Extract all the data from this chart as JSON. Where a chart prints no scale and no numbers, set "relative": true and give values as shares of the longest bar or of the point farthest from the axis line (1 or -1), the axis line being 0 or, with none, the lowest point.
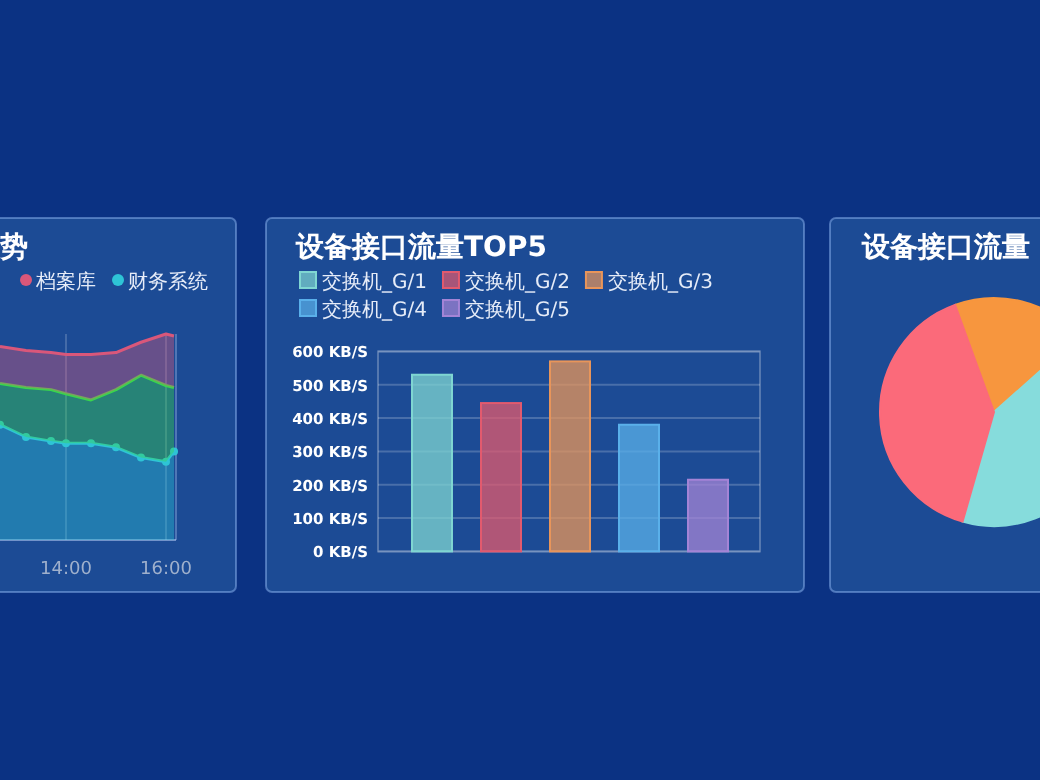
{
  "chart_data": [
    {
      "type": "area",
      "title": "势",
      "stacked": true,
      "relative": true,
      "x": [
        12.68,
        13.2,
        13.7,
        14.0,
        14.5,
        15.0,
        15.5,
        16.0,
        16.16
      ],
      "xlim": [
        12.5,
        16.2
      ],
      "xticks": [
        {
          "value": 14,
          "label": "14:00"
        },
        {
          "value": 16,
          "label": "16:00"
        }
      ],
      "tick_labels": "x",
      "grid": "x",
      "legend": "top",
      "series": [
        {
          "name": "财务系统",
          "color": "#2ec4d6",
          "marker": "circle",
          "values": [
            0.56,
            0.5,
            0.48,
            0.47,
            0.47,
            0.45,
            0.4,
            0.38,
            0.43
          ]
        },
        {
          "color": "#3ad64c",
          "values": [
            0.2,
            0.24,
            0.25,
            0.24,
            0.21,
            0.28,
            0.4,
            0.37,
            0.31
          ]
        },
        {
          "name": "档案库",
          "color": "#d9577a",
          "values": [
            0.18,
            0.18,
            0.18,
            0.19,
            0.22,
            0.18,
            0.16,
            0.25,
            0.25
          ]
        }
      ]
    },
    {
      "type": "bar",
      "title": "设备接口流量TOP5",
      "categories": [
        null,
        null,
        null,
        null,
        null
      ],
      "ylim": [
        0,
        600
      ],
      "yticks": [
        {
          "value": 0,
          "label": "0 KB/S"
        },
        {
          "value": 100,
          "label": "100 KB/S"
        },
        {
          "value": 200,
          "label": "200 KB/S"
        },
        {
          "value": 300,
          "label": "300 KB/S"
        },
        {
          "value": 400,
          "label": "400 KB/S"
        },
        {
          "value": 500,
          "label": "500 KB/S"
        },
        {
          "value": 600,
          "label": "600 KB/S"
        }
      ],
      "grid": "y",
      "legend": "top",
      "series": [
        {
          "name": "交换机_G/1",
          "color": "#7fd6d2",
          "values": [
            530,
            null,
            null,
            null,
            null
          ]
        },
        {
          "name": "交换机_G/2",
          "color": "#e25a6e",
          "values": [
            null,
            445,
            null,
            null,
            null
          ]
        },
        {
          "name": "交换机_G/3",
          "color": "#e8955a",
          "values": [
            null,
            null,
            570,
            null,
            null
          ]
        },
        {
          "name": "交换机_G/4",
          "color": "#5ab0ea",
          "values": [
            null,
            null,
            null,
            380,
            null
          ]
        },
        {
          "name": "交换机_G/5",
          "color": "#a484d6",
          "values": [
            null,
            null,
            null,
            null,
            215
          ]
        }
      ]
    },
    {
      "type": "pie",
      "title": "设备接口流量",
      "categories": [
        null,
        null,
        null
      ],
      "values": [
        19,
        41,
        40
      ],
      "colors": [
        "#f7963e",
        "#86dcdc",
        "#fb6a7a"
      ]
    }
  ]
}
